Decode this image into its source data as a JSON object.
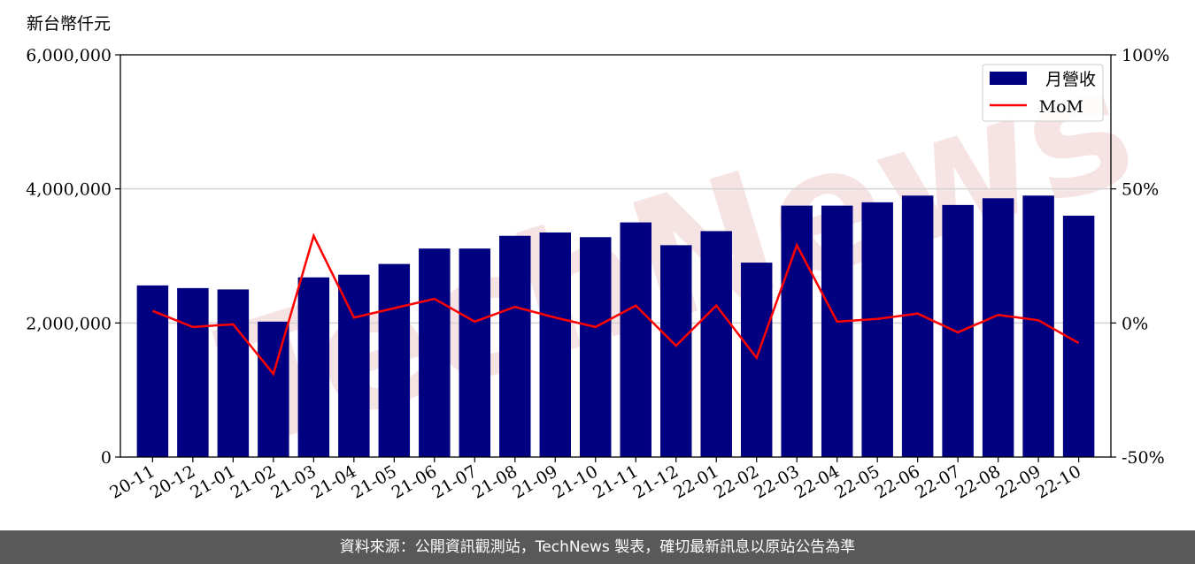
{
  "footer": {
    "text": "資料來源：公開資訊觀測站，TechNews 製表，確切最新訊息以原站公告為準"
  },
  "watermark": "TechNews",
  "colors": {
    "bar": "#000080",
    "line": "#ff0000",
    "grid": "#d3d3d3",
    "footer_bg": "#595959"
  },
  "chart_data": {
    "type": "bar",
    "title": "",
    "unit_label": "新台幣仟元",
    "categories": [
      "20-11",
      "20-12",
      "21-01",
      "21-02",
      "21-03",
      "21-04",
      "21-05",
      "21-06",
      "21-07",
      "21-08",
      "21-09",
      "21-10",
      "21-11",
      "21-12",
      "22-01",
      "22-02",
      "22-03",
      "22-04",
      "22-05",
      "22-06",
      "22-07",
      "22-08",
      "22-09",
      "22-10"
    ],
    "series": [
      {
        "name": "月營收",
        "type": "bar",
        "axis": "left",
        "values": [
          2560000,
          2520000,
          2500000,
          2020000,
          2680000,
          2720000,
          2880000,
          3110000,
          3110000,
          3300000,
          3350000,
          3280000,
          3500000,
          3160000,
          3370000,
          2900000,
          3750000,
          3750000,
          3800000,
          3900000,
          3760000,
          3860000,
          3900000,
          3600000
        ]
      },
      {
        "name": "MoM",
        "type": "line",
        "axis": "right",
        "values": [
          4.5,
          -1.5,
          -0.5,
          -19,
          32.5,
          2,
          5.5,
          9,
          0.5,
          6,
          2,
          -1.5,
          6.5,
          -8.5,
          6.5,
          -13,
          29,
          0.5,
          1.5,
          3.5,
          -3.5,
          3,
          1,
          -7.5
        ]
      }
    ],
    "y_left": {
      "ylim": [
        0,
        6000000
      ],
      "ticks": [
        0,
        2000000,
        4000000,
        6000000
      ],
      "tick_labels": [
        "0",
        "2,000,000",
        "4,000,000",
        "6,000,000"
      ]
    },
    "y_right": {
      "ylim": [
        -50,
        100
      ],
      "ticks": [
        -50,
        0,
        50,
        100
      ],
      "tick_labels": [
        "-50%",
        "0%",
        "50%",
        "100%"
      ]
    },
    "grid": "horizontal",
    "legend": {
      "placement": "top-right",
      "entries": [
        "月營收",
        "MoM"
      ]
    }
  }
}
